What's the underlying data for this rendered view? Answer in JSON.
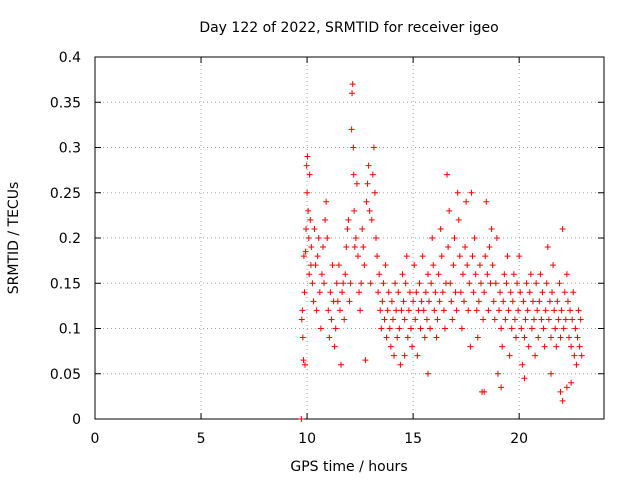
{
  "chart_data": {
    "type": "scatter",
    "title": "Day 122 of 2022, SRMTID for receiver igeo",
    "xlabel": "GPS time / hours",
    "ylabel": "SRMTID / TECUs",
    "xlim": [
      0,
      24
    ],
    "ylim": [
      0,
      0.4
    ],
    "xticks": [
      0,
      5,
      10,
      15,
      20
    ],
    "yticks": [
      0,
      0.05,
      0.1,
      0.15,
      0.2,
      0.25,
      0.3,
      0.35,
      0.4
    ],
    "xtick_labels": [
      "0",
      "5",
      "10",
      "15",
      "20"
    ],
    "ytick_labels": [
      "0",
      "0.05",
      "0.1",
      "0.15",
      "0.2",
      "0.25",
      "0.3",
      "0.35",
      "0.4"
    ],
    "grid": true,
    "marker": "+",
    "color": "#ff0000",
    "series": [
      {
        "name": "SRMTID",
        "points": [
          [
            9.73,
            0.0
          ],
          [
            9.75,
            0.11
          ],
          [
            9.78,
            0.12
          ],
          [
            9.8,
            0.09
          ],
          [
            9.83,
            0.065
          ],
          [
            9.85,
            0.18
          ],
          [
            9.88,
            0.14
          ],
          [
            9.9,
            0.06
          ],
          [
            9.93,
            0.185
          ],
          [
            9.95,
            0.21
          ],
          [
            9.98,
            0.28
          ],
          [
            10.0,
            0.25
          ],
          [
            10.02,
            0.29
          ],
          [
            10.05,
            0.23
          ],
          [
            10.08,
            0.2
          ],
          [
            10.1,
            0.16
          ],
          [
            10.12,
            0.27
          ],
          [
            10.15,
            0.22
          ],
          [
            10.18,
            0.17
          ],
          [
            10.2,
            0.19
          ],
          [
            10.25,
            0.15
          ],
          [
            10.3,
            0.13
          ],
          [
            10.35,
            0.21
          ],
          [
            10.4,
            0.17
          ],
          [
            10.45,
            0.12
          ],
          [
            10.5,
            0.18
          ],
          [
            10.55,
            0.2
          ],
          [
            10.6,
            0.14
          ],
          [
            10.65,
            0.1
          ],
          [
            10.7,
            0.16
          ],
          [
            10.75,
            0.19
          ],
          [
            10.8,
            0.15
          ],
          [
            10.85,
            0.22
          ],
          [
            10.9,
            0.24
          ],
          [
            10.95,
            0.2
          ],
          [
            11.0,
            0.12
          ],
          [
            11.05,
            0.09
          ],
          [
            11.1,
            0.14
          ],
          [
            11.15,
            0.11
          ],
          [
            11.2,
            0.17
          ],
          [
            11.25,
            0.13
          ],
          [
            11.3,
            0.08
          ],
          [
            11.35,
            0.1
          ],
          [
            11.4,
            0.15
          ],
          [
            11.45,
            0.13
          ],
          [
            11.5,
            0.17
          ],
          [
            11.55,
            0.12
          ],
          [
            11.6,
            0.06
          ],
          [
            11.65,
            0.14
          ],
          [
            11.7,
            0.15
          ],
          [
            11.75,
            0.11
          ],
          [
            11.8,
            0.16
          ],
          [
            11.85,
            0.19
          ],
          [
            11.9,
            0.21
          ],
          [
            11.95,
            0.22
          ],
          [
            12.0,
            0.13
          ],
          [
            12.05,
            0.15
          ],
          [
            12.1,
            0.32
          ],
          [
            12.12,
            0.36
          ],
          [
            12.15,
            0.37
          ],
          [
            12.18,
            0.3
          ],
          [
            12.2,
            0.27
          ],
          [
            12.22,
            0.23
          ],
          [
            12.25,
            0.19
          ],
          [
            12.3,
            0.2
          ],
          [
            12.35,
            0.26
          ],
          [
            12.4,
            0.18
          ],
          [
            12.45,
            0.14
          ],
          [
            12.5,
            0.12
          ],
          [
            12.55,
            0.15
          ],
          [
            12.6,
            0.21
          ],
          [
            12.65,
            0.19
          ],
          [
            12.7,
            0.17
          ],
          [
            12.75,
            0.065
          ],
          [
            12.8,
            0.24
          ],
          [
            12.85,
            0.26
          ],
          [
            12.9,
            0.28
          ],
          [
            12.95,
            0.23
          ],
          [
            13.0,
            0.15
          ],
          [
            13.05,
            0.22
          ],
          [
            13.1,
            0.27
          ],
          [
            13.15,
            0.3
          ],
          [
            13.2,
            0.25
          ],
          [
            13.25,
            0.2
          ],
          [
            13.3,
            0.18
          ],
          [
            13.35,
            0.14
          ],
          [
            13.4,
            0.16
          ],
          [
            13.45,
            0.12
          ],
          [
            13.5,
            0.1
          ],
          [
            13.55,
            0.13
          ],
          [
            13.6,
            0.15
          ],
          [
            13.65,
            0.11
          ],
          [
            13.7,
            0.17
          ],
          [
            13.75,
            0.09
          ],
          [
            13.8,
            0.12
          ],
          [
            13.85,
            0.14
          ],
          [
            13.9,
            0.1
          ],
          [
            13.95,
            0.08
          ],
          [
            14.0,
            0.13
          ],
          [
            14.05,
            0.11
          ],
          [
            14.1,
            0.07
          ],
          [
            14.15,
            0.15
          ],
          [
            14.2,
            0.12
          ],
          [
            14.25,
            0.09
          ],
          [
            14.3,
            0.14
          ],
          [
            14.35,
            0.1
          ],
          [
            14.4,
            0.06
          ],
          [
            14.45,
            0.12
          ],
          [
            14.5,
            0.16
          ],
          [
            14.55,
            0.13
          ],
          [
            14.6,
            0.11
          ],
          [
            14.65,
            0.15
          ],
          [
            14.7,
            0.18
          ],
          [
            14.75,
            0.09
          ],
          [
            14.8,
            0.12
          ],
          [
            14.85,
            0.14
          ],
          [
            14.9,
            0.1
          ],
          [
            14.95,
            0.08
          ],
          [
            15.0,
            0.13
          ],
          [
            15.05,
            0.17
          ],
          [
            15.1,
            0.11
          ],
          [
            15.15,
            0.14
          ],
          [
            15.2,
            0.07
          ],
          [
            15.25,
            0.12
          ],
          [
            15.3,
            0.15
          ],
          [
            15.35,
            0.1
          ],
          [
            15.4,
            0.13
          ],
          [
            15.45,
            0.18
          ],
          [
            15.5,
            0.12
          ],
          [
            15.55,
            0.09
          ],
          [
            15.6,
            0.14
          ],
          [
            15.65,
            0.11
          ],
          [
            15.7,
            0.16
          ],
          [
            15.75,
            0.13
          ],
          [
            15.8,
            0.1
          ],
          [
            15.85,
            0.15
          ],
          [
            15.9,
            0.2
          ],
          [
            15.95,
            0.17
          ],
          [
            16.0,
            0.12
          ],
          [
            16.05,
            0.14
          ],
          [
            16.1,
            0.09
          ],
          [
            16.15,
            0.11
          ],
          [
            16.2,
            0.16
          ],
          [
            16.25,
            0.13
          ],
          [
            16.3,
            0.21
          ],
          [
            16.35,
            0.18
          ],
          [
            16.4,
            0.14
          ],
          [
            16.45,
            0.12
          ],
          [
            16.5,
            0.1
          ],
          [
            16.55,
            0.15
          ],
          [
            16.6,
            0.27
          ],
          [
            16.65,
            0.19
          ],
          [
            16.7,
            0.23
          ],
          [
            16.75,
            0.15
          ],
          [
            16.8,
            0.13
          ],
          [
            16.85,
            0.11
          ],
          [
            16.9,
            0.17
          ],
          [
            16.95,
            0.2
          ],
          [
            17.0,
            0.14
          ],
          [
            17.05,
            0.12
          ],
          [
            17.1,
            0.25
          ],
          [
            17.15,
            0.22
          ],
          [
            17.2,
            0.18
          ],
          [
            17.25,
            0.14
          ],
          [
            17.3,
            0.1
          ],
          [
            17.35,
            0.16
          ],
          [
            17.4,
            0.13
          ],
          [
            17.45,
            0.19
          ],
          [
            17.5,
            0.24
          ],
          [
            17.55,
            0.17
          ],
          [
            17.6,
            0.12
          ],
          [
            17.65,
            0.15
          ],
          [
            17.7,
            0.08
          ],
          [
            17.75,
            0.25
          ],
          [
            17.8,
            0.18
          ],
          [
            17.85,
            0.14
          ],
          [
            17.9,
            0.2
          ],
          [
            17.95,
            0.16
          ],
          [
            18.0,
            0.12
          ],
          [
            18.05,
            0.09
          ],
          [
            18.1,
            0.13
          ],
          [
            18.15,
            0.17
          ],
          [
            18.2,
            0.15
          ],
          [
            18.25,
            0.03
          ],
          [
            18.3,
            0.11
          ],
          [
            18.35,
            0.14
          ],
          [
            18.4,
            0.18
          ],
          [
            18.45,
            0.24
          ],
          [
            18.5,
            0.16
          ],
          [
            18.55,
            0.12
          ],
          [
            18.6,
            0.19
          ],
          [
            18.65,
            0.15
          ],
          [
            18.7,
            0.21
          ],
          [
            18.75,
            0.17
          ],
          [
            18.8,
            0.13
          ],
          [
            18.85,
            0.11
          ],
          [
            18.9,
            0.15
          ],
          [
            18.95,
            0.2
          ],
          [
            19.0,
            0.05
          ],
          [
            19.05,
            0.12
          ],
          [
            19.1,
            0.14
          ],
          [
            19.15,
            0.1
          ],
          [
            19.2,
            0.08
          ],
          [
            19.25,
            0.13
          ],
          [
            19.3,
            0.16
          ],
          [
            19.35,
            0.11
          ],
          [
            19.4,
            0.15
          ],
          [
            19.45,
            0.18
          ],
          [
            19.5,
            0.12
          ],
          [
            19.55,
            0.07
          ],
          [
            19.6,
            0.14
          ],
          [
            19.65,
            0.1
          ],
          [
            19.7,
            0.13
          ],
          [
            19.75,
            0.16
          ],
          [
            19.8,
            0.11
          ],
          [
            19.85,
            0.09
          ],
          [
            19.9,
            0.15
          ],
          [
            19.95,
            0.12
          ],
          [
            20.0,
            0.18
          ],
          [
            20.05,
            0.14
          ],
          [
            20.1,
            0.1
          ],
          [
            20.15,
            0.06
          ],
          [
            20.2,
            0.13
          ],
          [
            20.25,
            0.09
          ],
          [
            20.3,
            0.11
          ],
          [
            20.35,
            0.15
          ],
          [
            20.4,
            0.12
          ],
          [
            20.45,
            0.08
          ],
          [
            20.5,
            0.14
          ],
          [
            20.55,
            0.16
          ],
          [
            20.6,
            0.1
          ],
          [
            20.65,
            0.13
          ],
          [
            20.7,
            0.11
          ],
          [
            20.75,
            0.07
          ],
          [
            20.8,
            0.15
          ],
          [
            20.85,
            0.12
          ],
          [
            20.9,
            0.09
          ],
          [
            20.95,
            0.13
          ],
          [
            21.0,
            0.16
          ],
          [
            21.05,
            0.11
          ],
          [
            21.1,
            0.14
          ],
          [
            21.15,
            0.1
          ],
          [
            21.2,
            0.08
          ],
          [
            21.25,
            0.12
          ],
          [
            21.3,
            0.15
          ],
          [
            21.35,
            0.19
          ],
          [
            21.4,
            0.11
          ],
          [
            21.45,
            0.13
          ],
          [
            21.5,
            0.09
          ],
          [
            21.55,
            0.14
          ],
          [
            21.6,
            0.17
          ],
          [
            21.65,
            0.12
          ],
          [
            21.7,
            0.1
          ],
          [
            21.75,
            0.08
          ],
          [
            21.8,
            0.13
          ],
          [
            21.85,
            0.11
          ],
          [
            21.9,
            0.15
          ],
          [
            21.95,
            0.09
          ],
          [
            22.0,
            0.12
          ],
          [
            22.05,
            0.21
          ],
          [
            22.1,
            0.1
          ],
          [
            22.15,
            0.14
          ],
          [
            22.2,
            0.11
          ],
          [
            22.25,
            0.16
          ],
          [
            22.3,
            0.13
          ],
          [
            22.35,
            0.09
          ],
          [
            22.4,
            0.12
          ],
          [
            22.45,
            0.08
          ],
          [
            22.5,
            0.11
          ],
          [
            22.55,
            0.14
          ],
          [
            22.6,
            0.07
          ],
          [
            22.65,
            0.1
          ],
          [
            22.7,
            0.06
          ],
          [
            22.75,
            0.09
          ],
          [
            22.8,
            0.12
          ],
          [
            22.85,
            0.08
          ],
          [
            22.9,
            0.11
          ],
          [
            22.95,
            0.07
          ],
          [
            22.25,
            0.035
          ],
          [
            22.05,
            0.02
          ],
          [
            21.95,
            0.03
          ],
          [
            22.45,
            0.04
          ],
          [
            21.5,
            0.05
          ],
          [
            20.25,
            0.045
          ],
          [
            19.15,
            0.035
          ],
          [
            18.35,
            0.03
          ],
          [
            15.7,
            0.05
          ],
          [
            14.6,
            0.07
          ]
        ]
      }
    ]
  }
}
